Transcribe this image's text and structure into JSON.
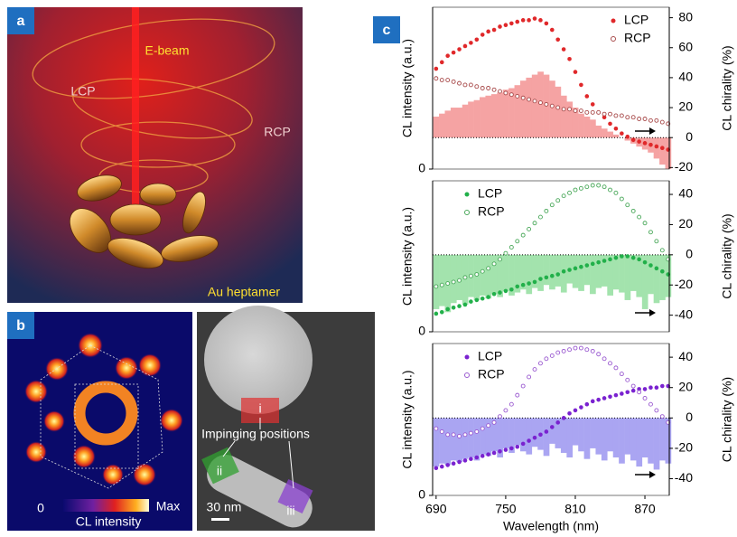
{
  "panel_a": {
    "label": "a",
    "beam": "E-beam",
    "lcp": "LCP",
    "rcp": "RCP",
    "sample": "Au heptamer"
  },
  "panel_b": {
    "label": "b",
    "colorbar_min": "0",
    "colorbar_max": "Max",
    "colorbar_label": "CL intensity",
    "annotation": "Impinging positions",
    "positions": [
      "i",
      "ii",
      "iii"
    ],
    "scale_bar": "30 nm"
  },
  "panel_c": {
    "label": "c"
  },
  "chart_data": [
    {
      "type": "combo",
      "ylabel": "CL intensity (a.u.)",
      "y2label": "CL chirality (%)",
      "x": [
        690,
        695,
        700,
        705,
        710,
        715,
        720,
        725,
        730,
        735,
        740,
        745,
        750,
        755,
        760,
        765,
        770,
        775,
        780,
        785,
        790,
        795,
        800,
        805,
        810,
        815,
        820,
        825,
        830,
        835,
        840,
        845,
        850,
        855,
        860,
        865,
        870,
        875,
        880,
        885,
        890
      ],
      "xlim": [
        687,
        891
      ],
      "ylim": [
        0,
        1
      ],
      "yticks": [
        0
      ],
      "y2lim": [
        -21,
        87
      ],
      "y2ticks": [
        -20,
        0,
        20,
        40,
        60,
        80
      ],
      "legend": "upper right",
      "series": [
        {
          "name": "LCP",
          "type": "scatter",
          "marker": "filled",
          "color": "#e0282a",
          "values": [
            0.62,
            0.66,
            0.7,
            0.72,
            0.74,
            0.76,
            0.78,
            0.8,
            0.83,
            0.85,
            0.86,
            0.88,
            0.89,
            0.9,
            0.91,
            0.92,
            0.92,
            0.93,
            0.92,
            0.9,
            0.86,
            0.8,
            0.74,
            0.68,
            0.6,
            0.52,
            0.45,
            0.4,
            0.35,
            0.32,
            0.28,
            0.25,
            0.22,
            0.2,
            0.18,
            0.17,
            0.16,
            0.15,
            0.14,
            0.13,
            0.12
          ]
        },
        {
          "name": "RCP",
          "type": "scatter",
          "marker": "open",
          "color": "#a84a4a",
          "values": [
            0.56,
            0.55,
            0.55,
            0.54,
            0.53,
            0.52,
            0.52,
            0.51,
            0.5,
            0.5,
            0.49,
            0.48,
            0.47,
            0.46,
            0.45,
            0.44,
            0.43,
            0.42,
            0.41,
            0.4,
            0.39,
            0.38,
            0.37,
            0.37,
            0.36,
            0.36,
            0.35,
            0.35,
            0.35,
            0.34,
            0.34,
            0.33,
            0.33,
            0.32,
            0.32,
            0.31,
            0.31,
            0.3,
            0.3,
            0.29,
            0.28
          ]
        },
        {
          "type": "bar",
          "axis": "y2",
          "color": "#f5a3a3",
          "values": [
            14,
            16,
            18,
            20,
            20,
            22,
            24,
            25,
            27,
            28,
            29,
            30,
            32,
            33,
            35,
            38,
            40,
            42,
            44,
            42,
            38,
            34,
            28,
            24,
            20,
            16,
            14,
            12,
            8,
            6,
            4,
            2,
            0,
            -2,
            -4,
            -6,
            -8,
            -10,
            -14,
            -18,
            -21
          ]
        }
      ]
    },
    {
      "type": "combo",
      "ylabel": "CL intensity (a.u.)",
      "y2label": "CL chirality (%)",
      "x": [
        690,
        695,
        700,
        705,
        710,
        715,
        720,
        725,
        730,
        735,
        740,
        745,
        750,
        755,
        760,
        765,
        770,
        775,
        780,
        785,
        790,
        795,
        800,
        805,
        810,
        815,
        820,
        825,
        830,
        835,
        840,
        845,
        850,
        855,
        860,
        865,
        870,
        875,
        880,
        885,
        890
      ],
      "xlim": [
        687,
        891
      ],
      "ylim": [
        0,
        1
      ],
      "yticks": [
        0
      ],
      "y2lim": [
        -51,
        49
      ],
      "y2ticks": [
        -40,
        -20,
        0,
        20,
        40
      ],
      "legend": "upper left",
      "series": [
        {
          "name": "LCP",
          "type": "scatter",
          "marker": "filled",
          "color": "#22b04a",
          "values": [
            0.12,
            0.13,
            0.15,
            0.16,
            0.17,
            0.18,
            0.2,
            0.21,
            0.22,
            0.23,
            0.25,
            0.26,
            0.27,
            0.28,
            0.3,
            0.31,
            0.32,
            0.33,
            0.35,
            0.36,
            0.37,
            0.38,
            0.4,
            0.41,
            0.42,
            0.43,
            0.44,
            0.45,
            0.46,
            0.47,
            0.48,
            0.49,
            0.5,
            0.5,
            0.49,
            0.48,
            0.46,
            0.44,
            0.42,
            0.4,
            0.38
          ]
        },
        {
          "name": "RCP",
          "type": "scatter",
          "marker": "open",
          "color": "#4aa85a",
          "values": [
            0.3,
            0.31,
            0.32,
            0.33,
            0.34,
            0.36,
            0.37,
            0.38,
            0.4,
            0.42,
            0.45,
            0.48,
            0.52,
            0.56,
            0.6,
            0.64,
            0.68,
            0.72,
            0.76,
            0.8,
            0.84,
            0.87,
            0.9,
            0.92,
            0.94,
            0.95,
            0.96,
            0.97,
            0.97,
            0.96,
            0.94,
            0.92,
            0.88,
            0.84,
            0.8,
            0.76,
            0.72,
            0.66,
            0.6,
            0.54,
            0.48
          ]
        },
        {
          "type": "bar",
          "axis": "y2",
          "color": "#a3e3ad",
          "values": [
            -36,
            -34,
            -38,
            -32,
            -30,
            -33,
            -28,
            -30,
            -27,
            -29,
            -26,
            -28,
            -24,
            -27,
            -25,
            -23,
            -26,
            -22,
            -24,
            -20,
            -23,
            -21,
            -25,
            -19,
            -22,
            -24,
            -20,
            -26,
            -22,
            -21,
            -27,
            -23,
            -25,
            -30,
            -24,
            -28,
            -36,
            -26,
            -32,
            -30,
            -28
          ]
        }
      ]
    },
    {
      "type": "combo",
      "ylabel": "CL intensity (a.u.)",
      "y2label": "CL chirality (%)",
      "xlabel": "Wavelength (nm)",
      "x": [
        690,
        695,
        700,
        705,
        710,
        715,
        720,
        725,
        730,
        735,
        740,
        745,
        750,
        755,
        760,
        765,
        770,
        775,
        780,
        785,
        790,
        795,
        800,
        805,
        810,
        815,
        820,
        825,
        830,
        835,
        840,
        845,
        850,
        855,
        860,
        865,
        870,
        875,
        880,
        885,
        890
      ],
      "xlim": [
        687,
        891
      ],
      "xticks": [
        690,
        750,
        810,
        870
      ],
      "ylim": [
        0,
        1
      ],
      "yticks": [
        0
      ],
      "y2lim": [
        -51,
        49
      ],
      "y2ticks": [
        -40,
        -20,
        0,
        20,
        40
      ],
      "legend": "upper left",
      "series": [
        {
          "name": "LCP",
          "type": "scatter",
          "marker": "filled",
          "color": "#7a22d0",
          "values": [
            0.18,
            0.19,
            0.2,
            0.21,
            0.22,
            0.23,
            0.24,
            0.25,
            0.26,
            0.27,
            0.28,
            0.29,
            0.3,
            0.31,
            0.32,
            0.34,
            0.36,
            0.38,
            0.4,
            0.42,
            0.45,
            0.48,
            0.51,
            0.54,
            0.56,
            0.58,
            0.6,
            0.62,
            0.63,
            0.64,
            0.65,
            0.66,
            0.67,
            0.68,
            0.69,
            0.7,
            0.7,
            0.71,
            0.71,
            0.72,
            0.72
          ]
        },
        {
          "name": "RCP",
          "type": "scatter",
          "marker": "open",
          "color": "#9a5ad0",
          "values": [
            0.44,
            0.42,
            0.4,
            0.4,
            0.39,
            0.4,
            0.41,
            0.42,
            0.44,
            0.46,
            0.48,
            0.52,
            0.56,
            0.6,
            0.66,
            0.72,
            0.78,
            0.83,
            0.87,
            0.9,
            0.92,
            0.94,
            0.95,
            0.96,
            0.97,
            0.97,
            0.96,
            0.95,
            0.93,
            0.9,
            0.87,
            0.84,
            0.8,
            0.76,
            0.72,
            0.68,
            0.64,
            0.6,
            0.56,
            0.52,
            0.48
          ]
        },
        {
          "type": "bar",
          "axis": "y2",
          "color": "#aaa5f2",
          "values": [
            -32,
            -30,
            -31,
            -28,
            -29,
            -27,
            -26,
            -28,
            -24,
            -25,
            -22,
            -26,
            -20,
            -23,
            -18,
            -22,
            -24,
            -19,
            -21,
            -25,
            -17,
            -20,
            -23,
            -26,
            -18,
            -22,
            -27,
            -20,
            -24,
            -28,
            -22,
            -26,
            -30,
            -24,
            -28,
            -32,
            -26,
            -30,
            -34,
            -28,
            -30
          ]
        }
      ]
    }
  ]
}
